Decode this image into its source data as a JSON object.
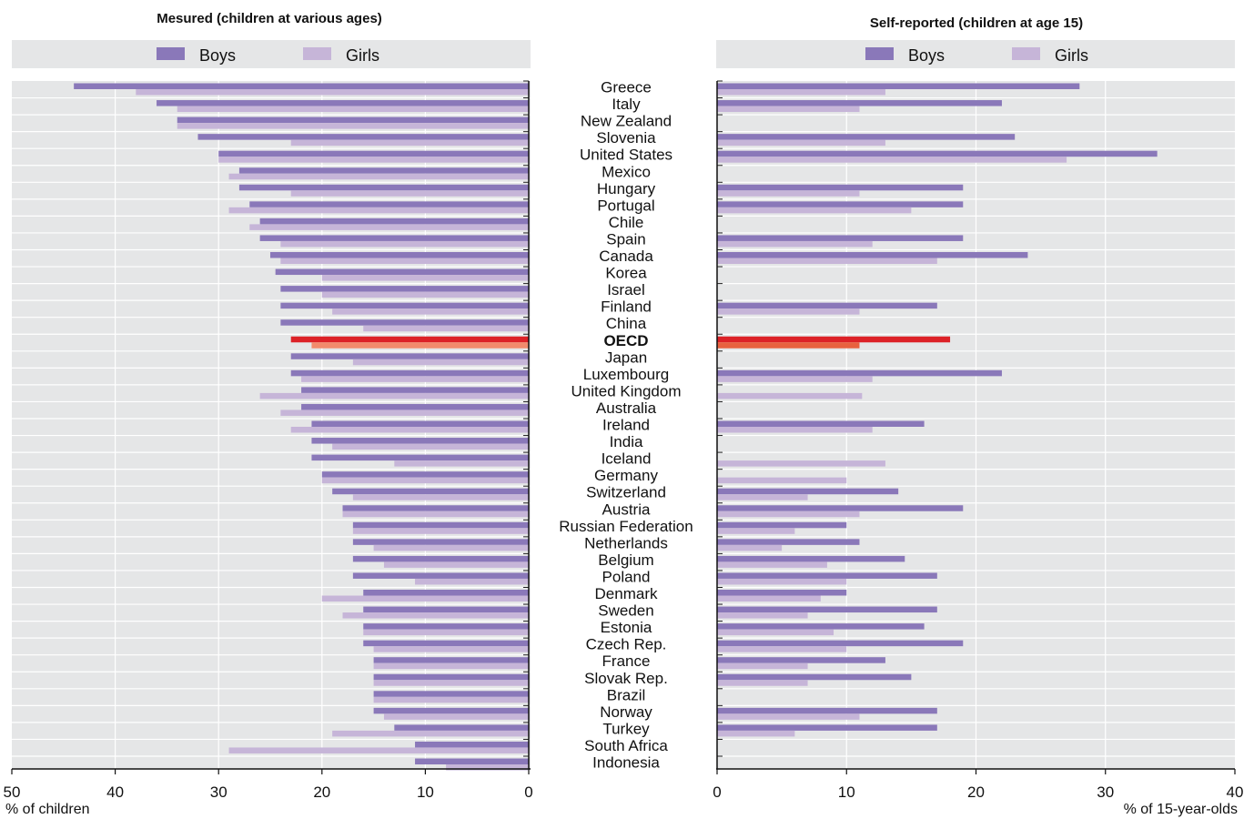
{
  "chart_data": [
    {
      "type": "bar",
      "orientation": "horizontal",
      "title": "Mesured (children at various ages)",
      "xlabel": "% of children",
      "xlim": [
        0,
        50
      ],
      "x_direction": "reversed",
      "ticks": [
        50,
        40,
        30,
        20,
        10,
        0
      ],
      "grid": true,
      "legend_position": "top",
      "categories": [
        "Greece",
        "Italy",
        "New Zealand",
        "Slovenia",
        "United States",
        "Mexico",
        "Hungary",
        "Portugal",
        "Chile",
        "Spain",
        "Canada",
        "Korea",
        "Israel",
        "Finland",
        "China",
        "OECD",
        "Japan",
        "Luxembourg",
        "United Kingdom",
        "Australia",
        "Ireland",
        "India",
        "Iceland",
        "Germany",
        "Switzerland",
        "Austria",
        "Russian Federation",
        "Netherlands",
        "Belgium",
        "Poland",
        "Denmark",
        "Sweden",
        "Estonia",
        "Czech Rep.",
        "France",
        "Slovak Rep.",
        "Brazil",
        "Norway",
        "Turkey",
        "South Africa",
        "Indonesia"
      ],
      "series": [
        {
          "name": "Boys",
          "color": "#8a78b9",
          "values": [
            44,
            36,
            34,
            32,
            30,
            28,
            28,
            27,
            26,
            26,
            25,
            24.5,
            24,
            24,
            24,
            23,
            23,
            23,
            22,
            22,
            21,
            21,
            21,
            20,
            19,
            18,
            17,
            17,
            17,
            17,
            16,
            16,
            16,
            16,
            15,
            15,
            15,
            15,
            13,
            11,
            11
          ]
        },
        {
          "name": "Girls",
          "color": "#c6b5d8",
          "values": [
            38,
            34,
            34,
            23,
            30,
            29,
            23,
            29,
            27,
            24,
            24,
            20,
            20,
            19,
            16,
            21,
            17,
            22,
            26,
            24,
            23,
            19,
            13,
            20,
            17,
            18,
            17,
            15,
            14,
            11,
            20,
            18,
            16,
            15,
            15,
            15,
            15,
            14,
            19,
            29,
            8
          ]
        }
      ],
      "highlight": {
        "category": "OECD",
        "boys_color": "#dc2127",
        "girls_color": "#f28a6c"
      }
    },
    {
      "type": "bar",
      "orientation": "horizontal",
      "title": "Self-reported (children at age 15)",
      "xlabel": "% of 15-year-olds",
      "xlim": [
        0,
        40
      ],
      "ticks": [
        0,
        10,
        20,
        30,
        40
      ],
      "grid": true,
      "legend_position": "top",
      "categories": [
        "Greece",
        "Italy",
        "New Zealand",
        "Slovenia",
        "United States",
        "Mexico",
        "Hungary",
        "Portugal",
        "Chile",
        "Spain",
        "Canada",
        "Korea",
        "Israel",
        "Finland",
        "China",
        "OECD",
        "Japan",
        "Luxembourg",
        "United Kingdom",
        "Australia",
        "Ireland",
        "India",
        "Iceland",
        "Germany",
        "Switzerland",
        "Austria",
        "Russian Federation",
        "Netherlands",
        "Belgium",
        "Poland",
        "Denmark",
        "Sweden",
        "Estonia",
        "Czech Rep.",
        "France",
        "Slovak Rep.",
        "Brazil",
        "Norway",
        "Turkey",
        "South Africa",
        "Indonesia"
      ],
      "series": [
        {
          "name": "Boys",
          "color": "#8a78b9",
          "values": [
            28,
            22,
            null,
            23,
            34,
            null,
            19,
            19,
            null,
            19,
            24,
            null,
            null,
            17,
            null,
            18,
            null,
            22,
            null,
            null,
            16,
            null,
            null,
            null,
            14,
            19,
            10,
            11,
            14.5,
            17,
            10,
            17,
            16,
            19,
            13,
            15,
            null,
            17,
            17,
            null,
            null
          ]
        },
        {
          "name": "Girls",
          "color": "#c6b5d8",
          "values": [
            13,
            11,
            null,
            13,
            27,
            null,
            11,
            15,
            null,
            12,
            17,
            null,
            null,
            11,
            null,
            11,
            null,
            12,
            11.2,
            null,
            12,
            null,
            13,
            10,
            7,
            11,
            6,
            5,
            8.5,
            10,
            8,
            7,
            9,
            10,
            7,
            7,
            null,
            11,
            6,
            null,
            null
          ]
        }
      ],
      "highlight": {
        "category": "OECD",
        "boys_color": "#dc2127",
        "girls_color": "#e8613f"
      }
    }
  ]
}
